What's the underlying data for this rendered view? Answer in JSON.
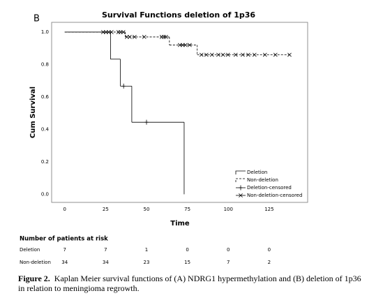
{
  "panel_label": "B",
  "chart_data": {
    "type": "kaplan-meier",
    "title": "Survival Functions deletion of 1p36",
    "x_label": "Time",
    "y_label": "Cum Survival",
    "xlim": [
      -8,
      148.5
    ],
    "ylim": [
      -0.05,
      1.06
    ],
    "xticks": [
      0,
      25,
      50,
      75,
      100,
      125
    ],
    "yticks": [
      {
        "value": 0,
        "label": "0.0"
      },
      0.2,
      0.4,
      0.6,
      0.8,
      {
        "value": 1,
        "label": "1.0"
      }
    ],
    "legend": "lower right",
    "series": [
      {
        "name": "Deletion",
        "kind": "step",
        "style": "solid",
        "color": "#000000",
        "x": [
          0,
          28,
          34,
          41,
          73
        ],
        "values": [
          1.0,
          0.833,
          0.667,
          0.444,
          0.0
        ]
      },
      {
        "name": "Non-deletion",
        "kind": "step",
        "style": "dashed",
        "color": "#000000",
        "x": [
          0,
          37,
          64,
          81,
          137
        ],
        "values": [
          1.0,
          0.97,
          0.92,
          0.86,
          0.86
        ]
      },
      {
        "name": "Deletion-censored",
        "kind": "censored",
        "marker": "plus",
        "color": "#000000",
        "x": [
          36,
          50
        ],
        "values": [
          0.667,
          0.444
        ]
      },
      {
        "name": "Non-deletion-censored",
        "kind": "censored",
        "marker": "cross",
        "color": "#000000",
        "x": [
          23.5,
          25.2,
          26.9,
          28.6,
          32.8,
          34.1,
          35.8,
          38,
          39.7,
          42.7,
          48.6,
          59.3,
          60.6,
          61.9,
          70.4,
          72.1,
          73.8,
          76.4,
          83.6,
          86.6,
          90,
          93.9,
          96.8,
          99.8,
          104.5,
          108.8,
          112.2,
          116,
          122.4,
          128.8,
          137.4
        ],
        "values": [
          1,
          1,
          1,
          1,
          1,
          1,
          1,
          0.97,
          0.97,
          0.97,
          0.97,
          0.97,
          0.97,
          0.97,
          0.92,
          0.92,
          0.92,
          0.92,
          0.86,
          0.86,
          0.86,
          0.86,
          0.86,
          0.86,
          0.86,
          0.86,
          0.86,
          0.86,
          0.86,
          0.86,
          0.86
        ]
      }
    ]
  },
  "risk_table": {
    "title": "Number of patients at risk",
    "rows": [
      {
        "label": "Deletion",
        "values": [
          7,
          7,
          1,
          0,
          0,
          0
        ]
      },
      {
        "label": "Non-deletion",
        "values": [
          34,
          34,
          23,
          15,
          7,
          2
        ]
      }
    ]
  },
  "caption": {
    "label": "Figure 2.",
    "text": "Kaplan Meier survival functions of (A) NDRG1 hypermethylation and (B) deletion of 1p36 in relation to meningioma regrowth."
  }
}
